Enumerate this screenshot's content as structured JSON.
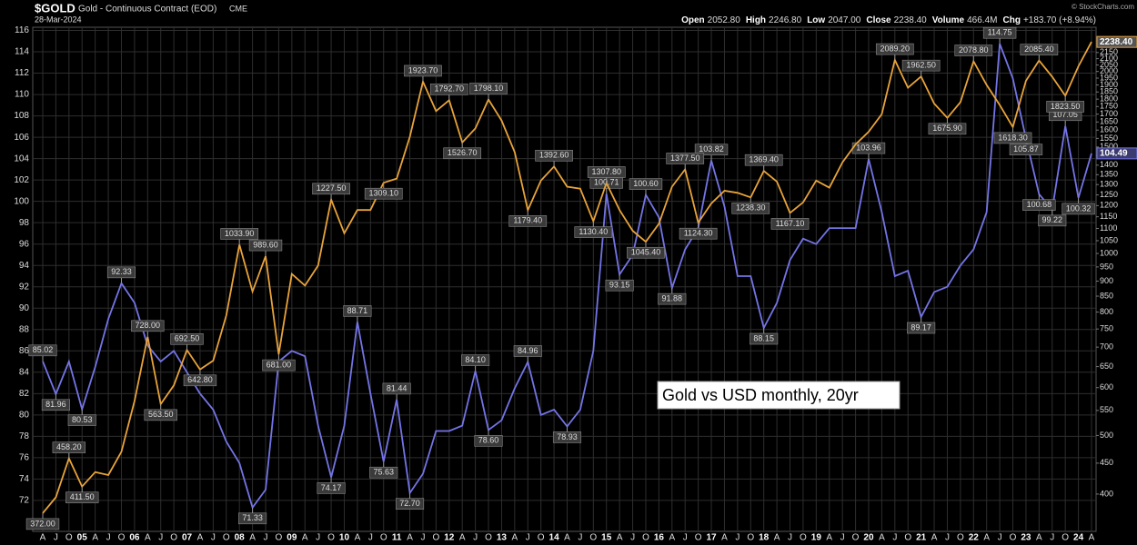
{
  "chart_data": {
    "type": "line",
    "title": "$GOLD",
    "subtitle": "Gold - Continuous Contract (EOD)",
    "exchange": "CME",
    "date": "28-Mar-2024",
    "quote": [
      {
        "label": "Open",
        "value": "2052.80"
      },
      {
        "label": "High",
        "value": "2246.80"
      },
      {
        "label": "Low",
        "value": "2047.00"
      },
      {
        "label": "Close",
        "value": "2238.40"
      },
      {
        "label": "Volume",
        "value": "466.4M"
      },
      {
        "label": "Chg",
        "value": "+183.70 (+8.94%)"
      }
    ],
    "watermark": "© StockCharts.com",
    "annotation": "Gold vs USD monthly, 20yr",
    "categories": [
      "A",
      "J",
      "O",
      "05",
      "A",
      "J",
      "O",
      "06",
      "A",
      "J",
      "O",
      "07",
      "A",
      "J",
      "O",
      "08",
      "A",
      "J",
      "O",
      "09",
      "A",
      "J",
      "O",
      "10",
      "A",
      "J",
      "O",
      "11",
      "A",
      "J",
      "O",
      "12",
      "A",
      "J",
      "O",
      "13",
      "A",
      "J",
      "O",
      "14",
      "A",
      "J",
      "O",
      "15",
      "A",
      "J",
      "O",
      "16",
      "A",
      "J",
      "O",
      "17",
      "A",
      "J",
      "O",
      "18",
      "A",
      "J",
      "O",
      "19",
      "A",
      "J",
      "O",
      "20",
      "A",
      "J",
      "O",
      "21",
      "A",
      "J",
      "O",
      "22",
      "A",
      "J",
      "O",
      "23",
      "A",
      "J",
      "O",
      "24",
      "A"
    ],
    "ylim": [
      69.1,
      116.3
    ],
    "yticks": [
      72,
      74,
      76,
      78,
      80,
      82,
      84,
      86,
      88,
      90,
      92,
      94,
      96,
      98,
      100,
      102,
      104,
      106,
      108,
      110,
      112,
      114,
      116
    ],
    "y2lim": [
      347,
      2367
    ],
    "y2log": true,
    "y2ticks": [
      400,
      450,
      500,
      550,
      600,
      650,
      700,
      750,
      800,
      850,
      900,
      950,
      1000,
      1050,
      1100,
      1150,
      1200,
      1250,
      1300,
      1350,
      1400,
      1450,
      1500,
      1550,
      1600,
      1650,
      1700,
      1750,
      1800,
      1850,
      1900,
      1950,
      2000,
      2050,
      2100,
      2150
    ],
    "grid": true,
    "series": [
      {
        "color": "#e8a33a",
        "axis": "y2",
        "values": [
          372,
          395,
          458.2,
          411.5,
          435,
          430,
          470,
          570,
          728,
          563.5,
          605,
          692.5,
          642.8,
          665,
          790,
          1033.9,
          865,
          989.6,
          681,
          925,
          885,
          955,
          1227.5,
          1080,
          1180,
          1180,
          1309.1,
          1330,
          1560,
          1923.7,
          1720,
          1792.7,
          1526.7,
          1610,
          1798.1,
          1660,
          1470,
          1179.4,
          1320,
          1392.6,
          1290,
          1280,
          1130.4,
          1307.8,
          1180,
          1090,
          1045.4,
          1120,
          1290,
          1377.5,
          1124.3,
          1210,
          1270,
          1260,
          1238.3,
          1369.4,
          1315,
          1167.1,
          1215,
          1320,
          1285,
          1415,
          1515,
          1590,
          1700,
          2089.2,
          1880,
          1962.5,
          1770,
          1675.9,
          1780,
          2078.8,
          1900,
          1760,
          1618.3,
          1930,
          2085.4,
          1960,
          1823.5,
          2040,
          2238.4
        ],
        "value_labels": [
          "372.00",
          null,
          "458.20",
          "411.50",
          null,
          null,
          null,
          null,
          "728.00",
          "563.50",
          null,
          "692.50",
          "642.80",
          null,
          null,
          "1033.90",
          null,
          "989.60",
          "681.00",
          null,
          null,
          null,
          "1227.50",
          null,
          null,
          null,
          "1309.10",
          null,
          null,
          "1923.70",
          null,
          "1792.70",
          "1526.70",
          null,
          "1798.10",
          null,
          null,
          "1179.40",
          null,
          "1392.60",
          null,
          null,
          "1130.40",
          "1307.80",
          null,
          null,
          "1045.40",
          null,
          null,
          "1377.50",
          "1124.30",
          null,
          null,
          null,
          "1238.30",
          "1369.40",
          null,
          "1167.10",
          null,
          null,
          null,
          null,
          null,
          null,
          null,
          "2089.20",
          null,
          "1962.50",
          null,
          "1675.90",
          null,
          "2078.80",
          null,
          null,
          "1618.30",
          null,
          "2085.40",
          null,
          "1823.50",
          null,
          "2238.40"
        ]
      },
      {
        "color": "#7474e6",
        "values": [
          85.02,
          81.96,
          85,
          80.53,
          84.5,
          89,
          92.33,
          90.5,
          86.5,
          85,
          86,
          84,
          82,
          80.5,
          77.5,
          75.5,
          71.33,
          73,
          85,
          86,
          85.5,
          79,
          74.17,
          79,
          88.71,
          82,
          75.63,
          81.44,
          72.7,
          74.5,
          78.5,
          78.5,
          79,
          84.1,
          78.6,
          79.5,
          82.5,
          84.96,
          80,
          80.5,
          78.93,
          80.5,
          86,
          100.71,
          93.15,
          95,
          100.6,
          98.5,
          91.88,
          95.5,
          97.5,
          103.82,
          99.5,
          93,
          93,
          88.15,
          90.5,
          94.5,
          96.5,
          96,
          97.5,
          97.5,
          97.5,
          103.96,
          99,
          93,
          93.5,
          89.17,
          91.5,
          92,
          94,
          95.5,
          99,
          114.75,
          111.5,
          105.87,
          100.68,
          99.22,
          107.05,
          100.32,
          104.49
        ],
        "value_labels": [
          "85.02",
          "81.96",
          null,
          "80.53",
          null,
          null,
          "92.33",
          null,
          null,
          null,
          null,
          null,
          null,
          null,
          null,
          null,
          "71.33",
          null,
          null,
          null,
          null,
          null,
          "74.17",
          null,
          "88.71",
          null,
          "75.63",
          "81.44",
          "72.70",
          null,
          null,
          null,
          null,
          "84.10",
          "78.60",
          null,
          null,
          "84.96",
          null,
          null,
          "78.93",
          null,
          null,
          "100.71",
          "93.15",
          null,
          "100.60",
          null,
          "91.88",
          null,
          null,
          "103.82",
          null,
          null,
          null,
          "88.15",
          null,
          null,
          null,
          null,
          null,
          null,
          null,
          "103.96",
          null,
          null,
          null,
          "89.17",
          null,
          null,
          null,
          null,
          null,
          "114.75",
          null,
          "105.87",
          "100.68",
          "99.22",
          "107.05",
          "100.32",
          "104.49"
        ]
      }
    ]
  }
}
